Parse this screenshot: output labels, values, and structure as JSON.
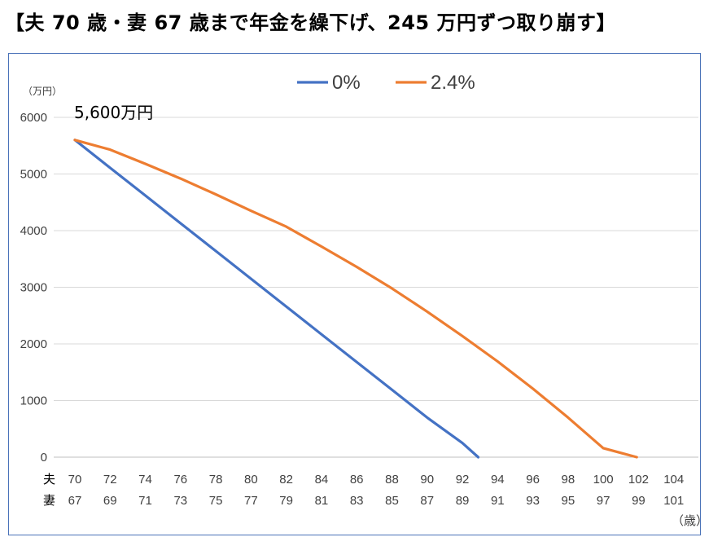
{
  "title": "【夫 70 歳・妻 67 歳まで年金を繰下げ、245 万円ずつ取り崩す】",
  "chart_data": {
    "type": "line",
    "unit_label": "（万円）",
    "annotation": "5,600万円",
    "x_unit_label": "（歳）",
    "row_labels": {
      "husband": "夫",
      "wife": "妻"
    },
    "husband_ages": [
      "70",
      "72",
      "74",
      "76",
      "78",
      "80",
      "82",
      "84",
      "86",
      "88",
      "90",
      "92",
      "94",
      "96",
      "98",
      "100",
      "102",
      "104"
    ],
    "wife_ages": [
      "67",
      "69",
      "71",
      "73",
      "75",
      "77",
      "79",
      "81",
      "83",
      "85",
      "87",
      "89",
      "91",
      "93",
      "95",
      "97",
      "99",
      "101"
    ],
    "ylim": [
      0,
      6000
    ],
    "yticks": [
      0,
      1000,
      2000,
      3000,
      4000,
      5000,
      6000
    ],
    "grid": true,
    "legend_position": "top",
    "series": [
      {
        "name": "0%",
        "color": "#4472c4",
        "points": [
          [
            70,
            5600
          ],
          [
            72,
            5110
          ],
          [
            74,
            4620
          ],
          [
            76,
            4130
          ],
          [
            78,
            3640
          ],
          [
            80,
            3150
          ],
          [
            82,
            2660
          ],
          [
            84,
            2170
          ],
          [
            86,
            1680
          ],
          [
            88,
            1190
          ],
          [
            90,
            700
          ],
          [
            92,
            250
          ],
          [
            92.9,
            0
          ]
        ]
      },
      {
        "name": "2.4%",
        "color": "#ed7d31",
        "points": [
          [
            70,
            5600
          ],
          [
            72,
            5430
          ],
          [
            74,
            5180
          ],
          [
            76,
            4920
          ],
          [
            78,
            4640
          ],
          [
            80,
            4350
          ],
          [
            82,
            4070
          ],
          [
            84,
            3720
          ],
          [
            86,
            3360
          ],
          [
            88,
            2980
          ],
          [
            90,
            2570
          ],
          [
            92,
            2140
          ],
          [
            94,
            1690
          ],
          [
            96,
            1210
          ],
          [
            98,
            700
          ],
          [
            100,
            160
          ],
          [
            101.9,
            0
          ]
        ]
      }
    ]
  }
}
